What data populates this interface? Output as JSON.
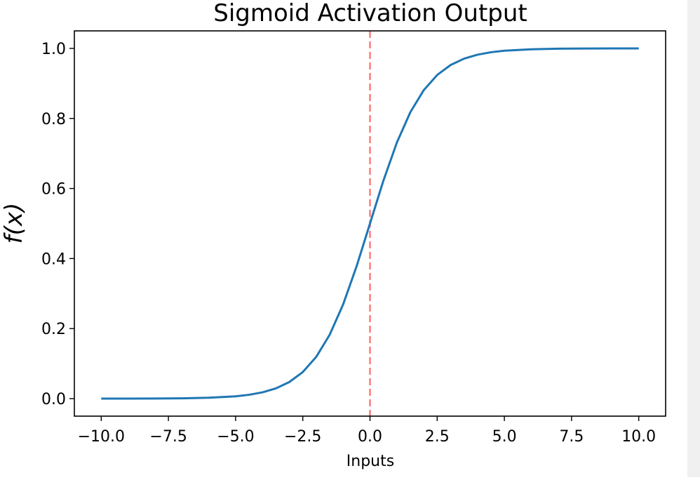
{
  "chart_data": {
    "type": "line",
    "title": "Sigmoid Activation Output",
    "xlabel": "Inputs",
    "ylabel": "f(x)",
    "xlim": [
      -11,
      11
    ],
    "ylim": [
      -0.05,
      1.05
    ],
    "xticks": [
      -10.0,
      -7.5,
      -5.0,
      -2.5,
      0.0,
      2.5,
      5.0,
      7.5,
      10.0
    ],
    "xtick_labels": [
      "−10.0",
      "−7.5",
      "−5.0",
      "−2.5",
      "0.0",
      "2.5",
      "5.0",
      "7.5",
      "10.0"
    ],
    "yticks": [
      0.0,
      0.2,
      0.4,
      0.6,
      0.8,
      1.0
    ],
    "ytick_labels": [
      "0.0",
      "0.2",
      "0.4",
      "0.6",
      "0.8",
      "1.0"
    ],
    "grid": false,
    "series": [
      {
        "color": "#1f77b4",
        "x": [
          -10,
          -9,
          -8,
          -7,
          -6,
          -5,
          -4.5,
          -4,
          -3.5,
          -3,
          -2.5,
          -2,
          -1.5,
          -1,
          -0.5,
          0,
          0.5,
          1,
          1.5,
          2,
          2.5,
          3,
          3.5,
          4,
          4.5,
          5,
          6,
          7,
          8,
          9,
          10
        ],
        "y": [
          0.0,
          0.0001,
          0.0003,
          0.0009,
          0.0025,
          0.0067,
          0.011,
          0.018,
          0.0293,
          0.0474,
          0.0759,
          0.1192,
          0.1824,
          0.2689,
          0.3775,
          0.5,
          0.6225,
          0.7311,
          0.8176,
          0.8808,
          0.9241,
          0.9526,
          0.9707,
          0.982,
          0.989,
          0.9933,
          0.9975,
          0.9991,
          0.9997,
          0.9999,
          1.0
        ]
      }
    ],
    "reference_lines": [
      {
        "orientation": "vertical",
        "x": 0,
        "color": "#ff7f7f",
        "style": "dashed"
      }
    ]
  }
}
